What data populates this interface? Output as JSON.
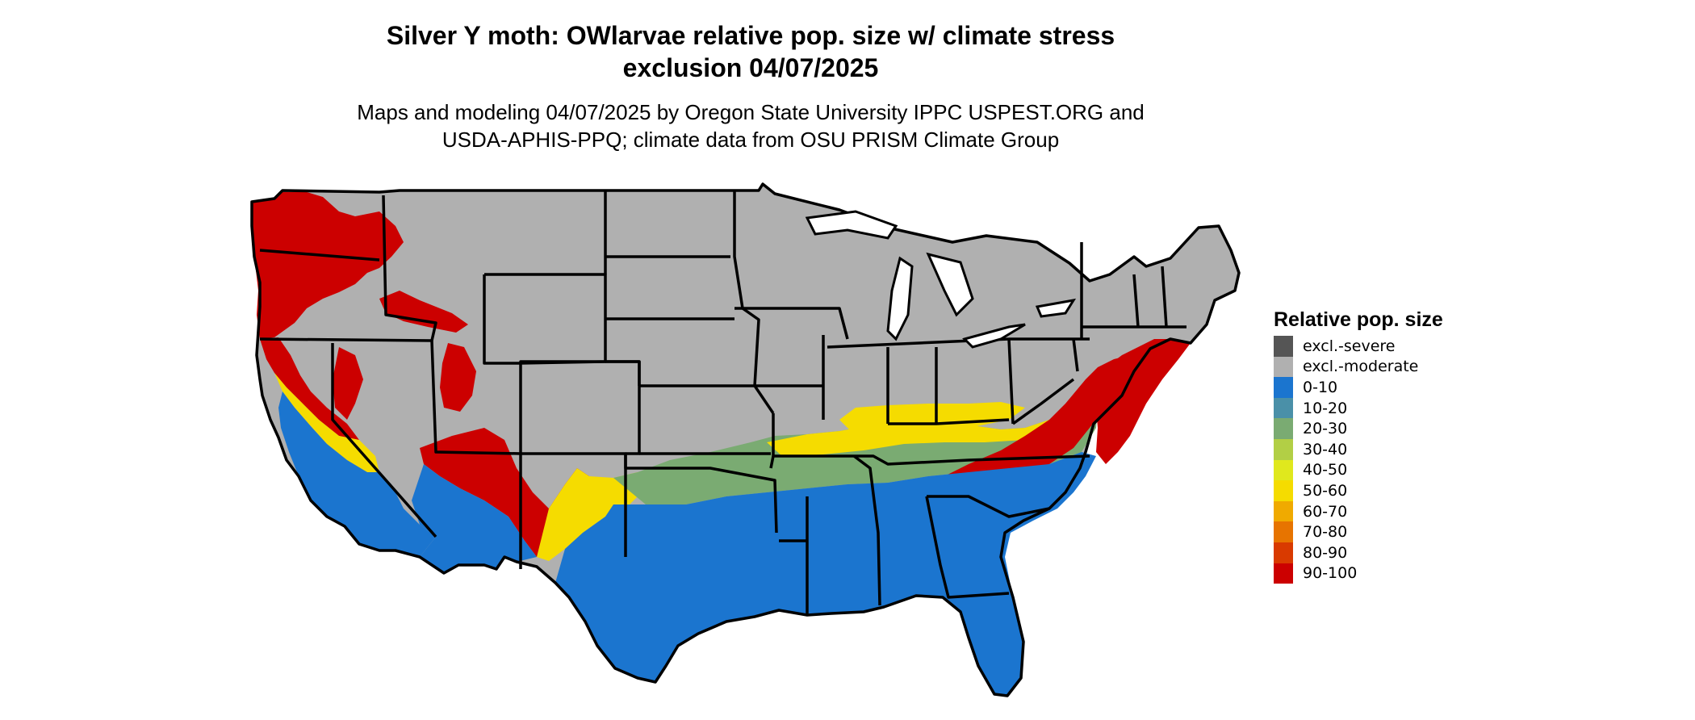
{
  "title": {
    "line1": "Silver Y moth: OWlarvae relative pop. size w/ climate stress",
    "line2": "exclusion 04/07/2025"
  },
  "subtitle": {
    "line1": "Maps and modeling 04/07/2025 by Oregon State University IPPC USPEST.ORG and",
    "line2": "USDA-APHIS-PPQ; climate data from OSU PRISM Climate Group"
  },
  "legend": {
    "title": "Relative pop. size",
    "items": [
      {
        "label": "excl.-severe",
        "color": "#555555"
      },
      {
        "label": "excl.-moderate",
        "color": "#b0b0b0"
      },
      {
        "label": "0-10",
        "color": "#1b75cf"
      },
      {
        "label": "10-20",
        "color": "#4a90a8"
      },
      {
        "label": "20-30",
        "color": "#7aab72"
      },
      {
        "label": "30-40",
        "color": "#b2cf45"
      },
      {
        "label": "40-50",
        "color": "#e0e81d"
      },
      {
        "label": "50-60",
        "color": "#f5dc00"
      },
      {
        "label": "60-70",
        "color": "#f0aa00"
      },
      {
        "label": "70-80",
        "color": "#e77400"
      },
      {
        "label": "80-90",
        "color": "#d93a00"
      },
      {
        "label": "90-100",
        "color": "#cc0000"
      }
    ]
  },
  "map_colors": {
    "land": "#b0b0b0",
    "border": "#000000",
    "water": "#ffffff"
  }
}
